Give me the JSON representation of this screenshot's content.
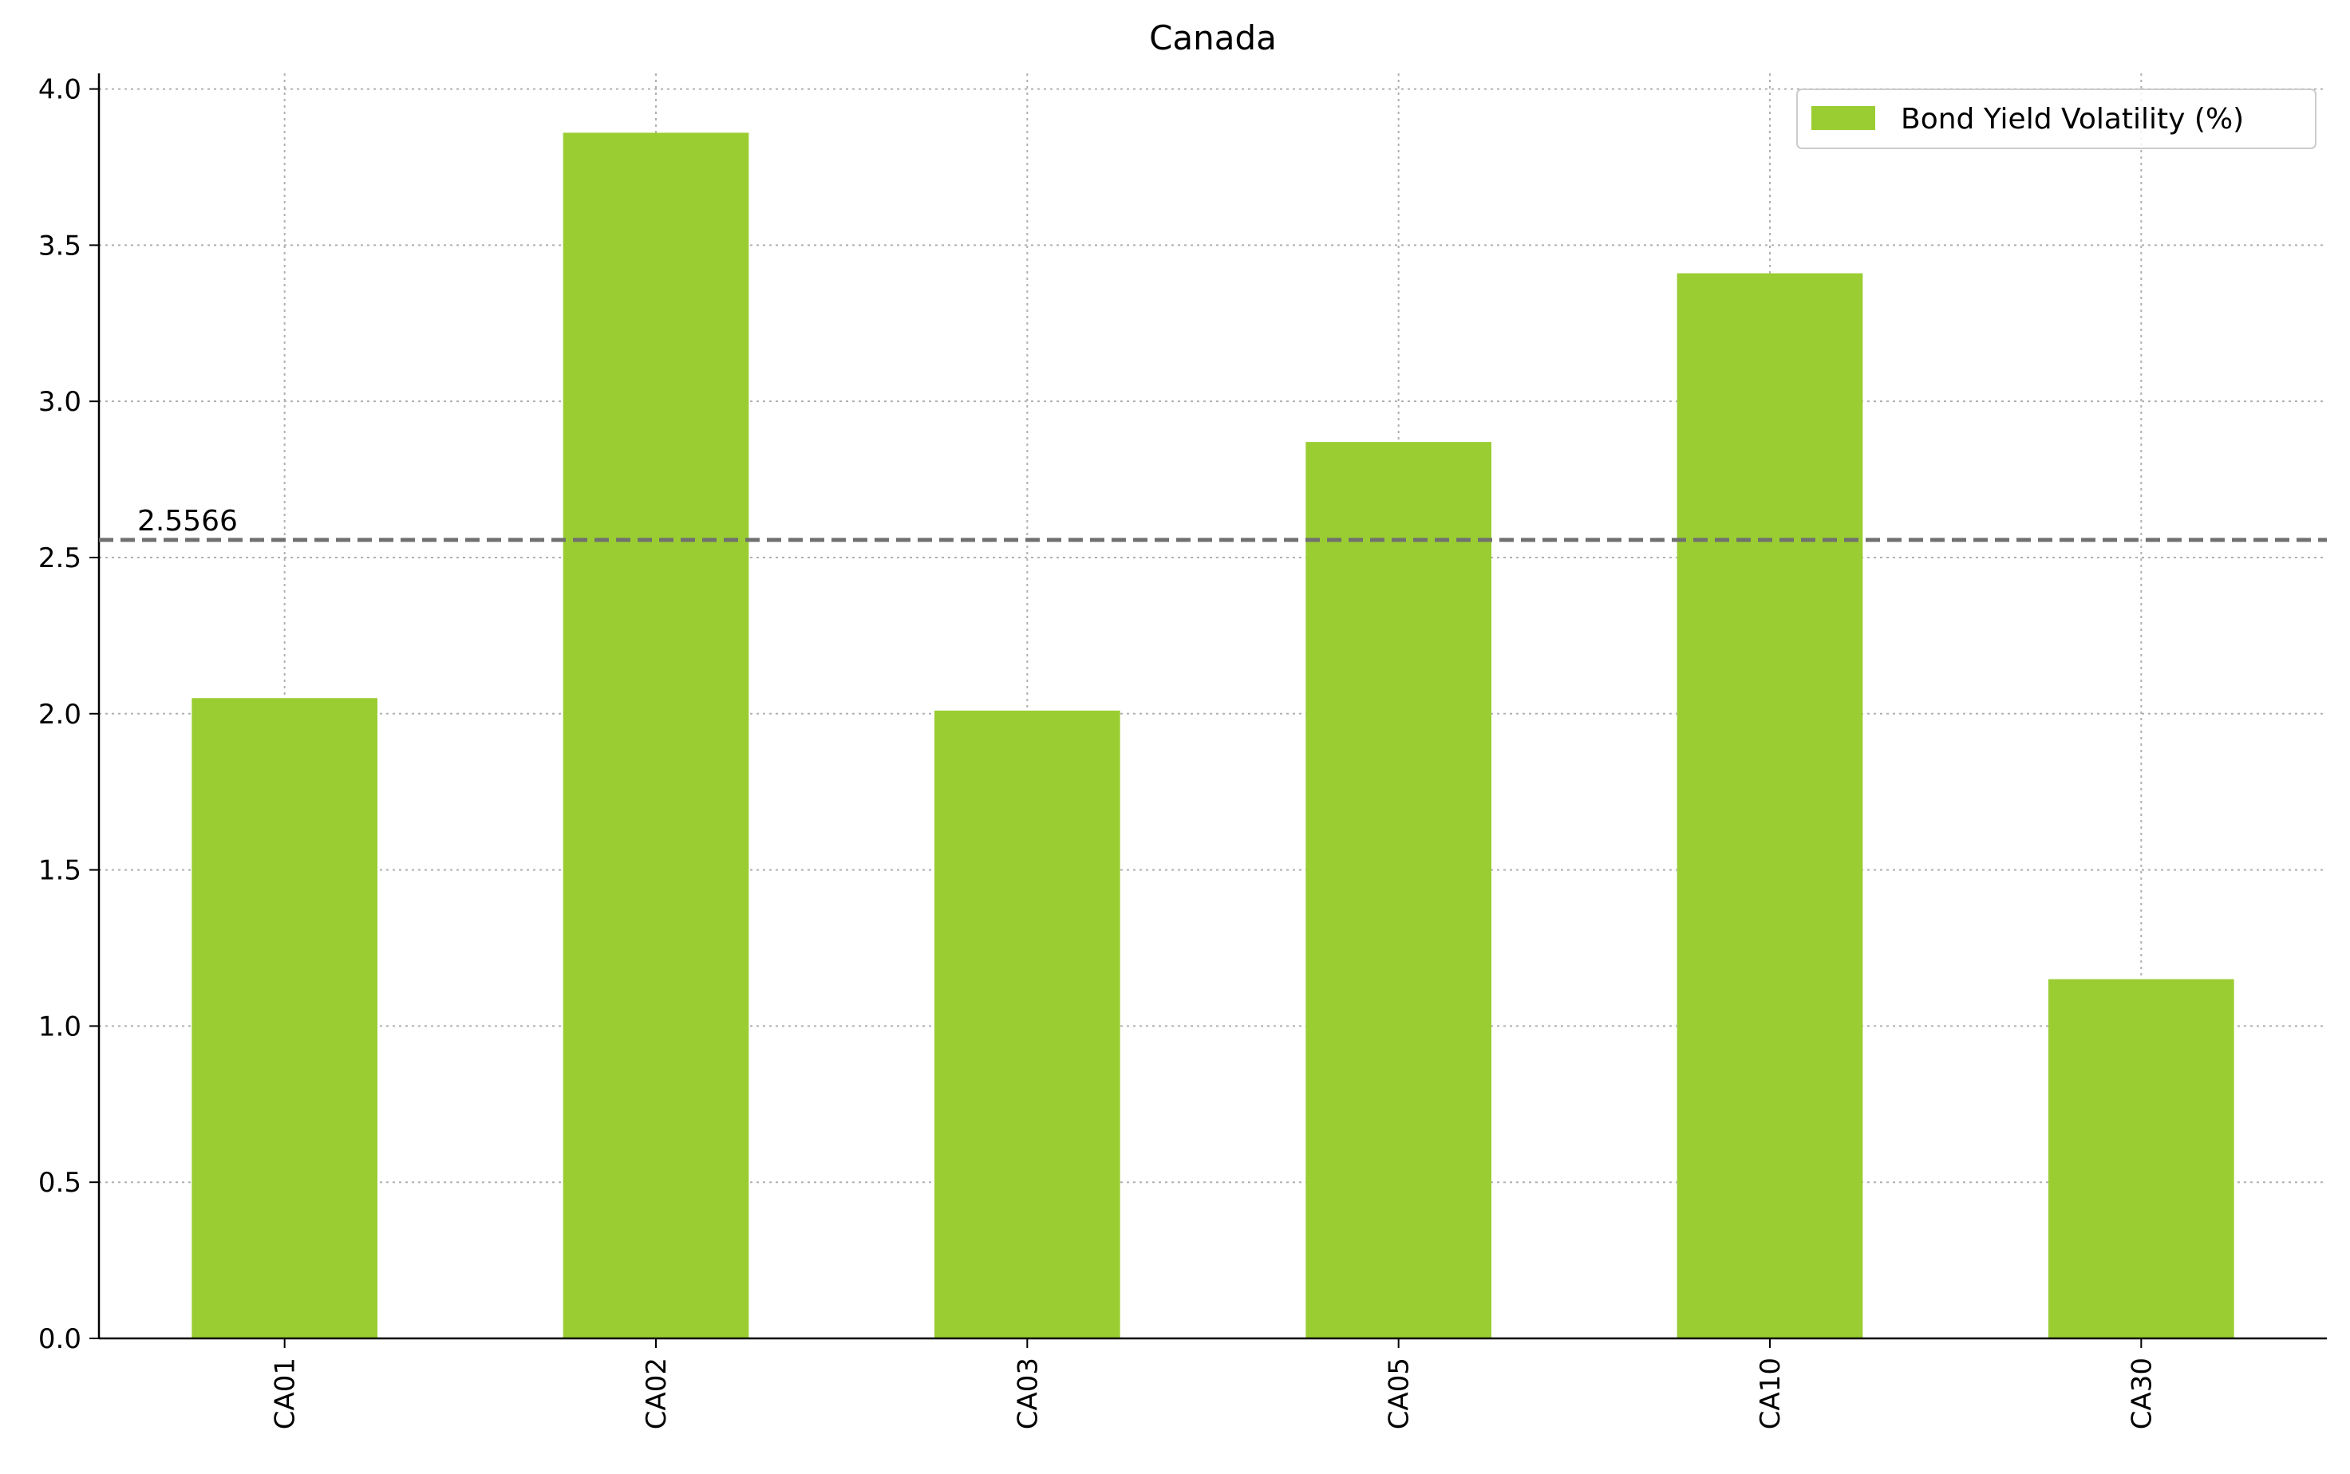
{
  "chart_data": {
    "type": "bar",
    "title": "Canada",
    "xlabel": "",
    "ylabel": "",
    "categories": [
      "CA01",
      "CA02",
      "CA03",
      "CA05",
      "CA10",
      "CA30"
    ],
    "series": [
      {
        "name": "Bond Yield Volatility (%)",
        "values": [
          2.05,
          3.86,
          2.01,
          2.87,
          3.41,
          1.15
        ],
        "color": "#9acd32"
      }
    ],
    "ylim": [
      0,
      4.05
    ],
    "yticks": [
      0.0,
      0.5,
      1.0,
      1.5,
      2.0,
      2.5,
      3.0,
      3.5,
      4.0
    ],
    "ytick_labels": [
      "0.0",
      "0.5",
      "1.0",
      "1.5",
      "2.0",
      "2.5",
      "3.0",
      "3.5",
      "4.0"
    ],
    "reference_line": {
      "value": 2.5566,
      "label": "2.5566",
      "style": "dashed",
      "color": "#707070"
    },
    "grid": true,
    "legend_position": "top-right",
    "x_tick_rotation": "vertical"
  }
}
